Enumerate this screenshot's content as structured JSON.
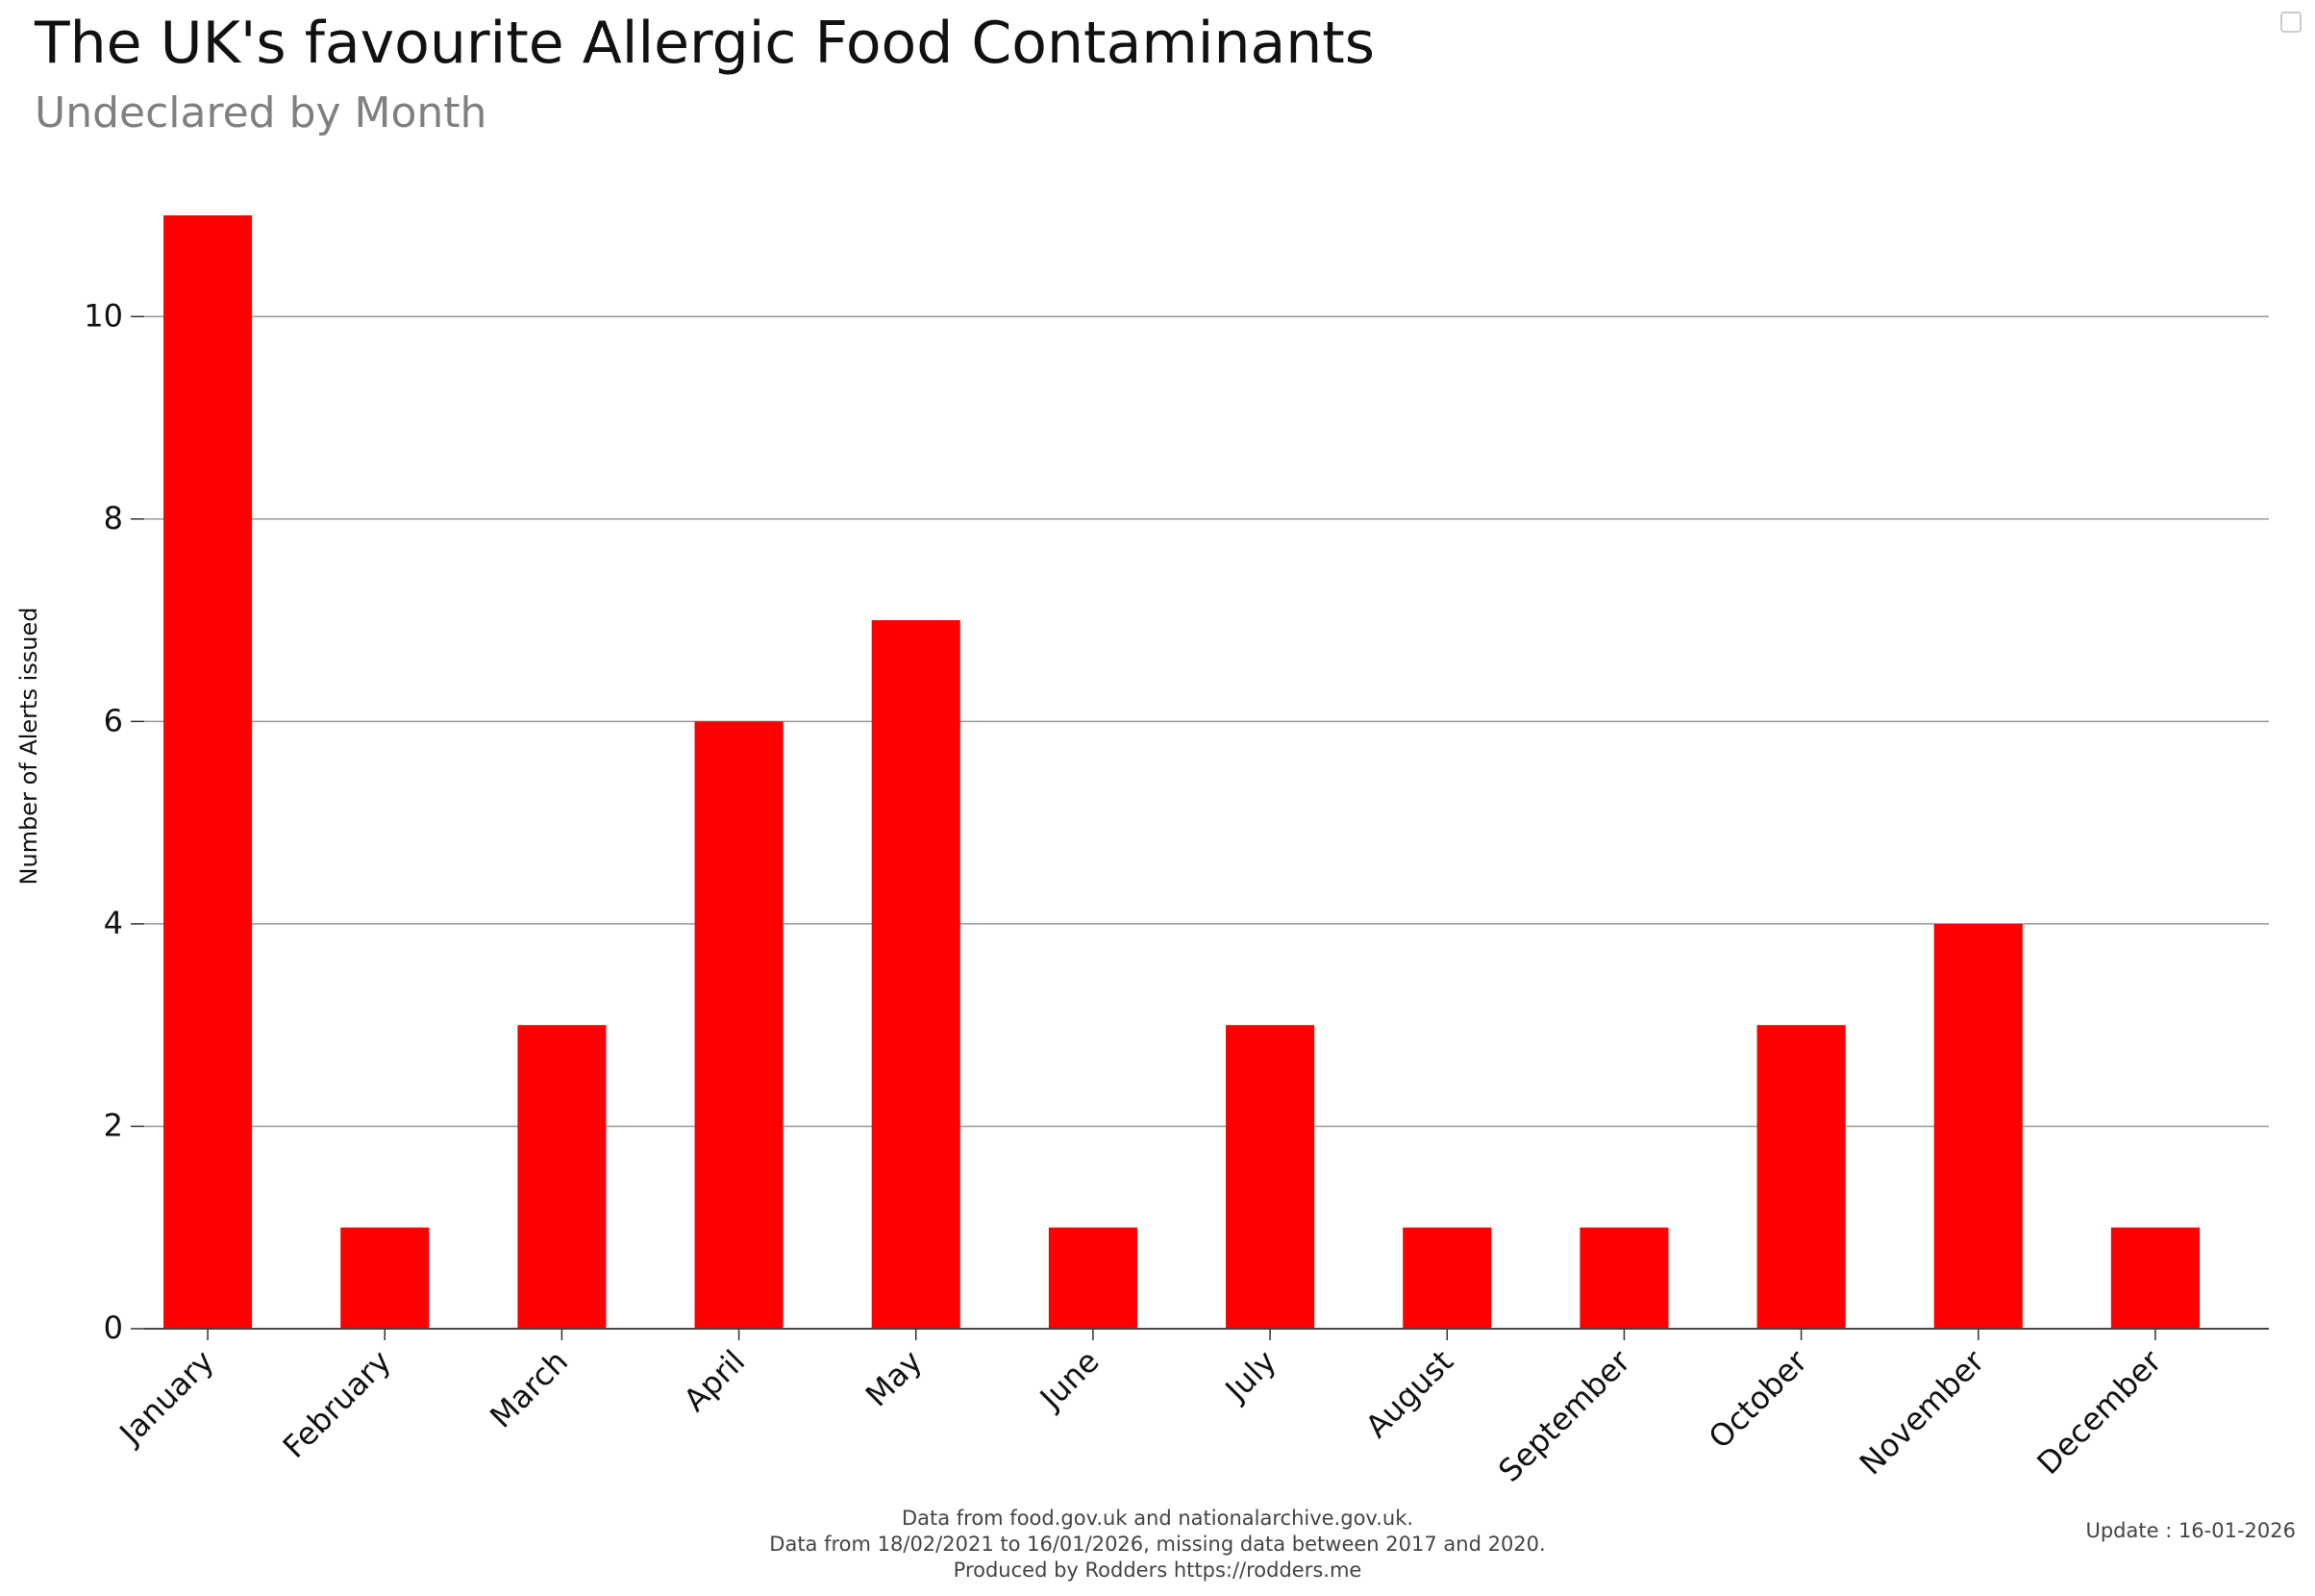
{
  "chart_data": {
    "type": "bar",
    "title": "The UK's favourite Allergic Food Contaminants",
    "subtitle": "Undeclared by Month",
    "xlabel": "",
    "ylabel": "Number of Alerts issued",
    "categories": [
      "January",
      "February",
      "March",
      "April",
      "May",
      "June",
      "July",
      "August",
      "September",
      "October",
      "November",
      "December"
    ],
    "values": [
      11,
      1,
      3,
      6,
      7,
      1,
      3,
      1,
      1,
      3,
      4,
      1
    ],
    "ylim": [
      0,
      11
    ],
    "yticks": [
      0,
      2,
      4,
      6,
      8,
      10
    ],
    "grid": true,
    "bar_color": "#ff0000"
  },
  "footer": {
    "line1": "Data from food.gov.uk and nationalarchive.gov.uk.",
    "line2": "Data from 18/02/2021 to 16/01/2026, missing data between 2017 and 2020.",
    "line3": "Produced by Rodders https://rodders.me",
    "update": "Update : 16-01-2026"
  }
}
